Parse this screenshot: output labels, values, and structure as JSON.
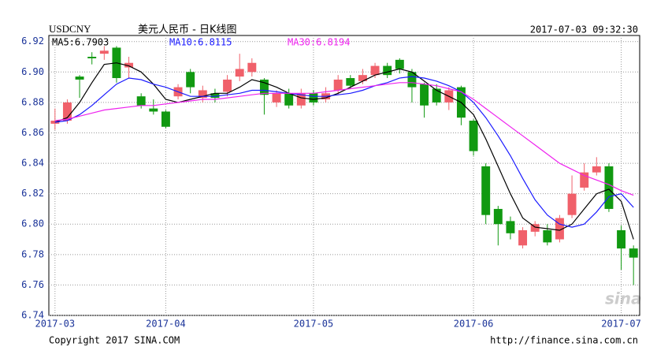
{
  "chart_data": {
    "type": "candlestick",
    "ticker": "USDCNY",
    "title": "美元人民币 - 日K线图",
    "timestamp": "2017-07-03 09:32:30",
    "categories": [
      "2017-03",
      null,
      null,
      null,
      null,
      null,
      null,
      null,
      null,
      "2017-04",
      null,
      null,
      null,
      null,
      null,
      null,
      null,
      null,
      null,
      null,
      null,
      "2017-05",
      null,
      null,
      null,
      null,
      null,
      null,
      null,
      null,
      null,
      null,
      null,
      null,
      "2017-06",
      null,
      null,
      null,
      null,
      null,
      null,
      null,
      null,
      null,
      null,
      null,
      "2017-07",
      null
    ],
    "open": [
      6.866,
      6.868,
      6.897,
      6.91,
      6.912,
      6.916,
      6.903,
      6.884,
      6.876,
      6.874,
      6.884,
      6.9,
      6.883,
      6.886,
      6.887,
      6.897,
      6.9,
      6.895,
      6.88,
      6.886,
      6.878,
      6.886,
      6.882,
      6.888,
      6.896,
      6.894,
      6.898,
      6.904,
      6.908,
      6.9,
      6.892,
      6.889,
      6.88,
      6.89,
      6.868,
      6.838,
      6.81,
      6.802,
      6.786,
      6.795,
      6.796,
      6.79,
      6.806,
      6.824,
      6.834,
      6.838,
      6.796,
      6.784
    ],
    "high": [
      6.876,
      6.882,
      6.898,
      6.913,
      6.917,
      6.917,
      6.91,
      6.886,
      6.882,
      6.875,
      6.892,
      6.902,
      6.891,
      6.889,
      6.898,
      6.912,
      6.909,
      6.896,
      6.888,
      6.889,
      6.889,
      6.888,
      6.89,
      6.898,
      6.898,
      6.902,
      6.906,
      6.906,
      6.909,
      6.902,
      6.893,
      6.892,
      6.89,
      6.891,
      6.869,
      6.84,
      6.812,
      6.805,
      6.798,
      6.802,
      6.8,
      6.806,
      6.832,
      6.84,
      6.844,
      6.84,
      6.799,
      6.786
    ],
    "low": [
      6.862,
      6.866,
      6.883,
      6.905,
      6.908,
      6.893,
      6.896,
      6.876,
      6.872,
      6.863,
      6.882,
      6.886,
      6.88,
      6.88,
      6.884,
      6.894,
      6.897,
      6.872,
      6.877,
      6.876,
      6.876,
      6.878,
      6.88,
      6.885,
      6.889,
      6.892,
      6.896,
      6.896,
      6.899,
      6.88,
      6.87,
      6.878,
      6.875,
      6.865,
      6.845,
      6.8,
      6.786,
      6.79,
      6.784,
      6.792,
      6.786,
      6.788,
      6.804,
      6.822,
      6.832,
      6.808,
      6.77,
      6.76
    ],
    "close": [
      6.868,
      6.88,
      6.895,
      6.909,
      6.914,
      6.896,
      6.906,
      6.878,
      6.874,
      6.864,
      6.89,
      6.89,
      6.888,
      6.883,
      6.895,
      6.902,
      6.906,
      6.885,
      6.886,
      6.878,
      6.886,
      6.88,
      6.886,
      6.895,
      6.891,
      6.898,
      6.904,
      6.898,
      6.902,
      6.89,
      6.878,
      6.88,
      6.888,
      6.87,
      6.848,
      6.806,
      6.8,
      6.794,
      6.796,
      6.8,
      6.788,
      6.804,
      6.82,
      6.834,
      6.838,
      6.81,
      6.784,
      6.778
    ],
    "up_color": "#f0606a",
    "down_color": "#119911",
    "series": [
      {
        "name": "MA5:6.7903",
        "color": "#000000",
        "values": [
          6.867,
          6.87,
          6.88,
          6.893,
          6.905,
          6.906,
          6.904,
          6.9,
          6.892,
          6.882,
          6.88,
          6.882,
          6.884,
          6.886,
          6.886,
          6.89,
          6.895,
          6.893,
          6.89,
          6.886,
          6.883,
          6.882,
          6.883,
          6.886,
          6.89,
          6.894,
          6.898,
          6.9,
          6.902,
          6.9,
          6.894,
          6.888,
          6.884,
          6.88,
          6.872,
          6.856,
          6.838,
          6.82,
          6.804,
          6.798,
          6.797,
          6.796,
          6.8,
          6.81,
          6.82,
          6.823,
          6.815,
          6.79
        ]
      },
      {
        "name": "MA10:6.8115",
        "color": "#1a1aff",
        "values": [
          6.867,
          6.868,
          6.872,
          6.878,
          6.885,
          6.892,
          6.896,
          6.895,
          6.892,
          6.89,
          6.887,
          6.884,
          6.884,
          6.884,
          6.885,
          6.886,
          6.888,
          6.888,
          6.887,
          6.886,
          6.885,
          6.884,
          6.884,
          6.885,
          6.886,
          6.888,
          6.891,
          6.893,
          6.896,
          6.897,
          6.896,
          6.894,
          6.891,
          6.887,
          6.88,
          6.87,
          6.858,
          6.845,
          6.83,
          6.816,
          6.806,
          6.8,
          6.798,
          6.8,
          6.808,
          6.818,
          6.82,
          6.811
        ]
      },
      {
        "name": "MA30:6.8194",
        "color": "#ee22ee",
        "values": [
          6.868,
          6.869,
          6.871,
          6.873,
          6.875,
          6.876,
          6.877,
          6.878,
          6.878,
          6.879,
          6.88,
          6.881,
          6.882,
          6.882,
          6.883,
          6.884,
          6.885,
          6.886,
          6.886,
          6.886,
          6.886,
          6.886,
          6.887,
          6.888,
          6.889,
          6.89,
          6.891,
          6.892,
          6.893,
          6.893,
          6.892,
          6.891,
          6.889,
          6.887,
          6.882,
          6.876,
          6.87,
          6.864,
          6.858,
          6.852,
          6.846,
          6.84,
          6.836,
          6.832,
          6.829,
          6.826,
          6.822,
          6.819
        ]
      }
    ],
    "ylim": [
      6.74,
      6.924
    ],
    "yticks": [
      6.74,
      6.76,
      6.78,
      {
        "value": 6.8,
        "label": "6.80"
      },
      6.82,
      6.84,
      6.86,
      6.88,
      {
        "value": 6.9,
        "label": "6.90"
      },
      6.92
    ],
    "grid": true,
    "watermark": "sina",
    "copyright": "Copyright 2017 SINA.COM",
    "source": "http://finance.sina.com.cn"
  }
}
